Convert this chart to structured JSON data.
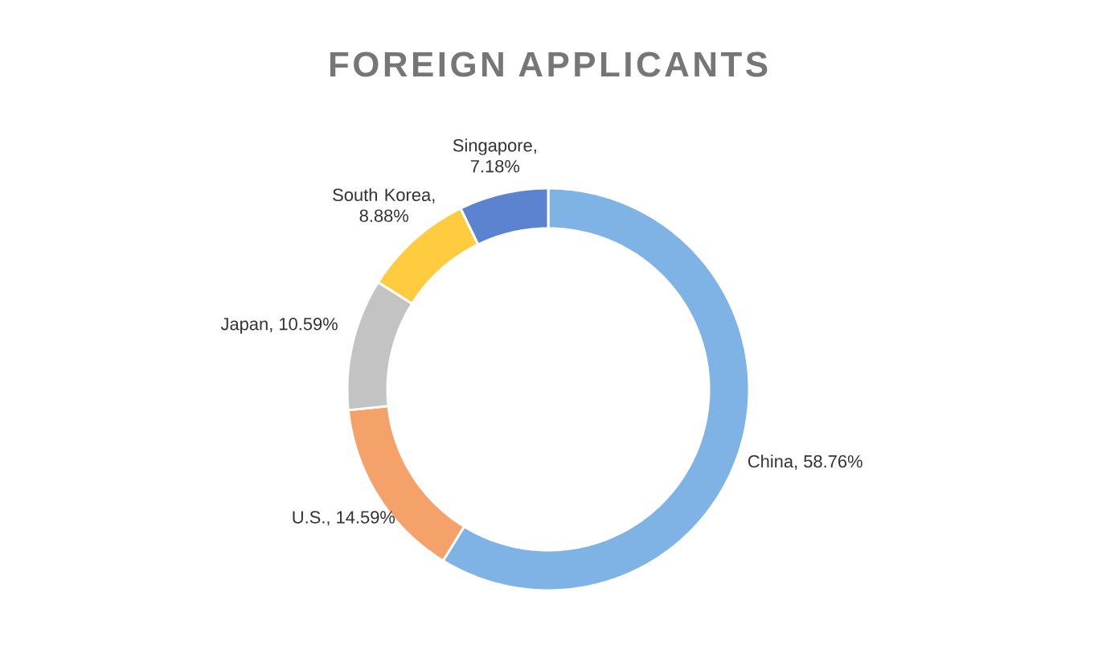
{
  "chart_data": {
    "type": "donut",
    "title": "FOREIGN APPLICANTS",
    "categories": [
      "China",
      "U.S.",
      "Japan",
      "South Korea",
      "Singapore"
    ],
    "values": [
      58.76,
      14.59,
      10.59,
      8.88,
      7.18
    ],
    "value_labels": [
      ", 58.76%",
      ", 14.59%",
      ", 10.59%",
      ", 8.88%",
      ", 7.18%"
    ],
    "colors": [
      "#7fb2e5",
      "#f4a16a",
      "#c3c3c3",
      "#ffcc40",
      "#5b83d0"
    ]
  }
}
